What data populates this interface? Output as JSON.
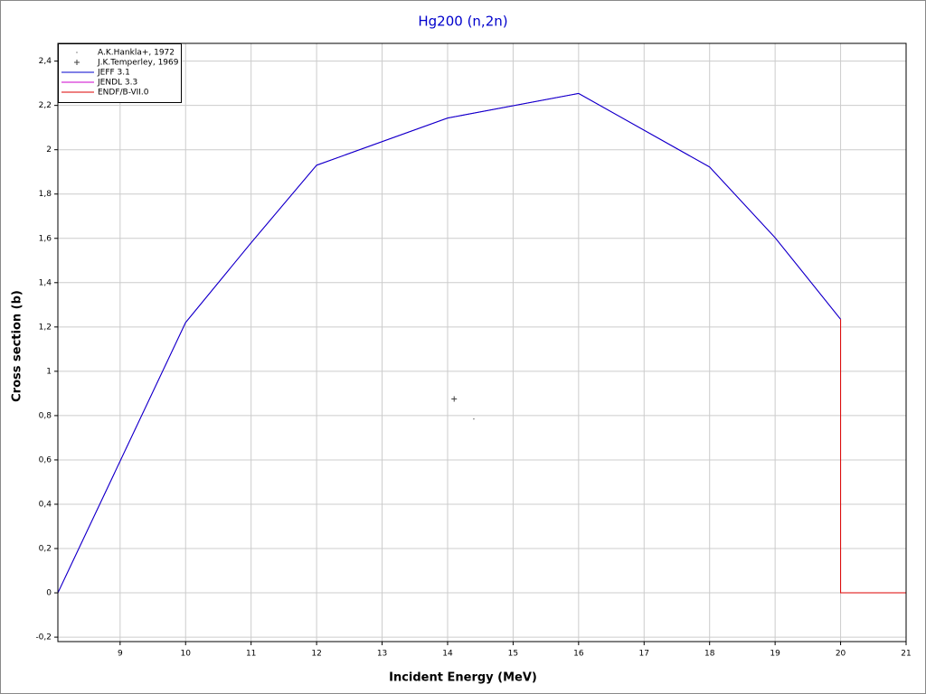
{
  "chart_data": {
    "type": "line",
    "title": "Hg200 (n,2n)",
    "x_label": "Incident Energy (MeV)",
    "y_label": "Cross section (b)",
    "xlim": [
      8.05,
      21
    ],
    "ylim": [
      -0.22,
      2.48
    ],
    "xticks": [
      9,
      10,
      11,
      12,
      13,
      14,
      15,
      16,
      17,
      18,
      19,
      20,
      21
    ],
    "yticks": [
      {
        "value": -0.2,
        "label": "-0,2"
      },
      0,
      {
        "value": 0.2,
        "label": "0,2"
      },
      {
        "value": 0.4,
        "label": "0,4"
      },
      {
        "value": 0.6,
        "label": "0,6"
      },
      {
        "value": 0.8,
        "label": "0,8"
      },
      1,
      {
        "value": 1.2,
        "label": "1,2"
      },
      {
        "value": 1.4,
        "label": "1,4"
      },
      {
        "value": 1.6,
        "label": "1,6"
      },
      {
        "value": 1.8,
        "label": "1,8"
      },
      2,
      {
        "value": 2.2,
        "label": "2,2"
      },
      {
        "value": 2.4,
        "label": "2,4"
      }
    ],
    "grid": true,
    "legend": "upper left",
    "series": [
      {
        "name": "A.K.Hankla+, 1972",
        "color": "#808080",
        "style": "dot",
        "x": [
          14.4
        ],
        "values": [
          0.785
        ]
      },
      {
        "name": "J.K.Temperley, 1969",
        "color": "#404040",
        "style": "plus",
        "x": [
          14.1
        ],
        "values": [
          0.875
        ]
      },
      {
        "name": "JEFF 3.1",
        "color": "#0000cc",
        "style": "line",
        "x": [
          8.05,
          10,
          11,
          12,
          14,
          16,
          18,
          19,
          20
        ],
        "values": [
          0,
          1.22,
          1.58,
          1.93,
          2.143,
          2.254,
          1.922,
          1.603,
          1.235
        ]
      },
      {
        "name": "JENDL 3.3",
        "color": "#cc00cc",
        "style": "line",
        "x": [
          8.05,
          10,
          11,
          12,
          14,
          16,
          18,
          19,
          20
        ],
        "values": [
          0,
          1.22,
          1.58,
          1.93,
          2.143,
          2.254,
          1.922,
          1.603,
          1.235
        ]
      },
      {
        "name": "ENDF/B-VII.0",
        "color": "#dd0000",
        "style": "line",
        "x": [
          20,
          20,
          21
        ],
        "values": [
          1.235,
          0,
          0
        ]
      }
    ]
  }
}
